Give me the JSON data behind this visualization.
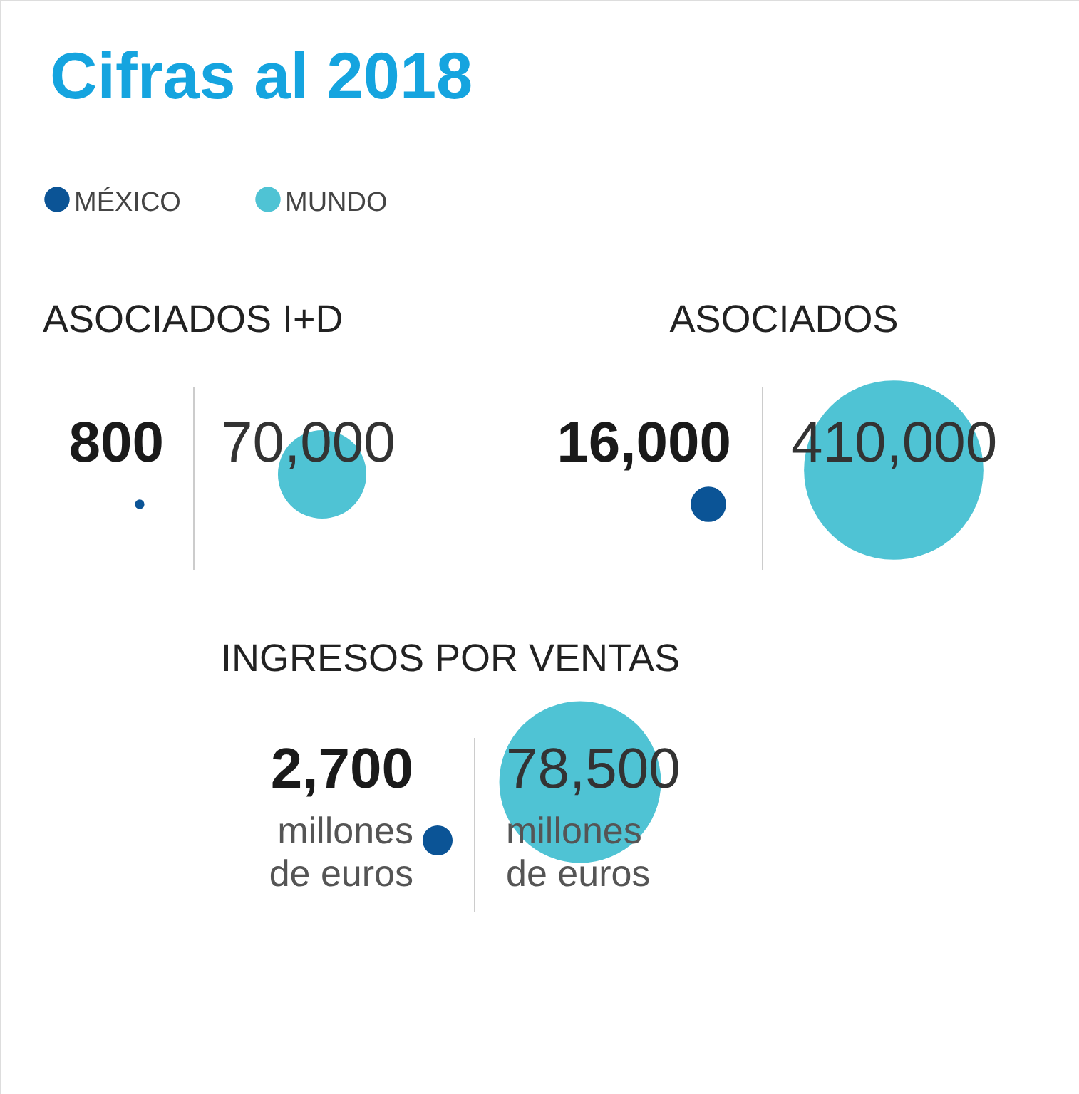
{
  "chart_data": [
    {
      "type": "other",
      "title": "Cifras al 2018",
      "subtitle": "ASOCIADOS I+D",
      "categories": [
        "MÉXICO",
        "MUNDO"
      ],
      "colors": [
        "#0b5496",
        "#4fc3d4"
      ],
      "values": [
        800,
        70000
      ],
      "value_labels": [
        "800",
        "70,000"
      ]
    },
    {
      "type": "other",
      "subtitle": "ASOCIADOS",
      "categories": [
        null,
        null
      ],
      "colors": [
        "#0b5496",
        "#4fc3d4"
      ],
      "values": [
        16000,
        410000
      ],
      "value_labels": [
        "16,000",
        "410,000"
      ]
    },
    {
      "type": "other",
      "subtitle": "INGRESOS POR VENTAS",
      "annotations": [
        "millones de euros",
        "millones de euros"
      ],
      "categories": [
        null,
        null
      ],
      "colors": [
        "#0b5496",
        "#4fc3d4"
      ],
      "values": [
        2700,
        78500
      ],
      "value_labels": [
        "2,700",
        "78,500"
      ]
    }
  ]
}
